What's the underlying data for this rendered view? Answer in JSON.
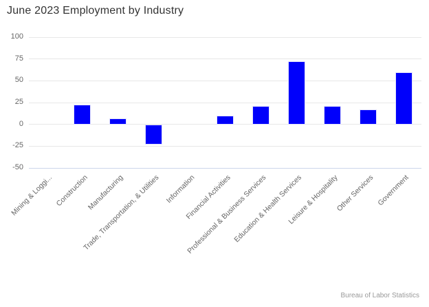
{
  "credits": "Bureau of Labor Statistics",
  "colors": {
    "bar_fill": "#0000fb",
    "bar_border": "#e3e3fc",
    "gridline": "#e7e7e7",
    "axis_line": "#ccd6eb",
    "title_text": "#333333",
    "axis_label_text": "#666666",
    "credits_text": "#999999",
    "background": "#ffffff"
  },
  "chart_data": {
    "type": "bar",
    "title": "June 2023 Employment by Industry",
    "categories": [
      "Mining & Loggi...",
      "Construction",
      "Manufacturing",
      "Trade, Transportation, & Utilities",
      "Information",
      "Financial Activities",
      "Professional & Business Services",
      "Education & Health Services",
      "Leisure & Hospitality",
      "Other Services",
      "Government"
    ],
    "values": [
      0,
      23,
      7,
      -23,
      0,
      10,
      21,
      72,
      21,
      17,
      60
    ],
    "xlabel": "",
    "ylabel": "",
    "ylim": [
      -50,
      100
    ],
    "yticks": [
      100,
      75,
      50,
      25,
      0,
      -25,
      -50
    ],
    "grid": true,
    "legend": "none",
    "x_label_rotation": -45
  }
}
